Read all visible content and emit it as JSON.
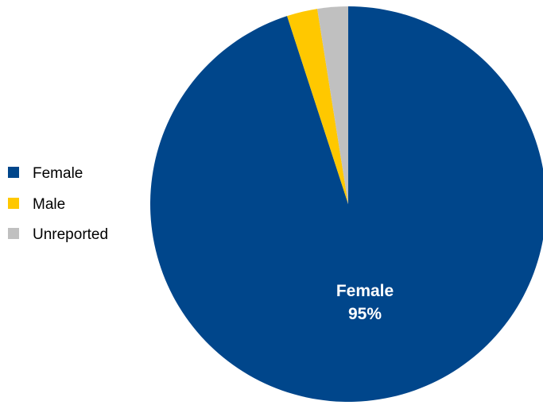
{
  "chart_data": {
    "type": "pie",
    "categories": [
      "Female",
      "Male",
      "Unreported"
    ],
    "values": [
      95,
      2.5,
      2.5
    ],
    "colors": [
      "#00468b",
      "#ffc800",
      "#c0c0c0"
    ],
    "legend": [
      "Female",
      "Male",
      "Unreported"
    ],
    "legend_position": "left",
    "data_labels": [
      {
        "category": "Female",
        "name": "Female",
        "value_text": "95%"
      }
    ]
  }
}
